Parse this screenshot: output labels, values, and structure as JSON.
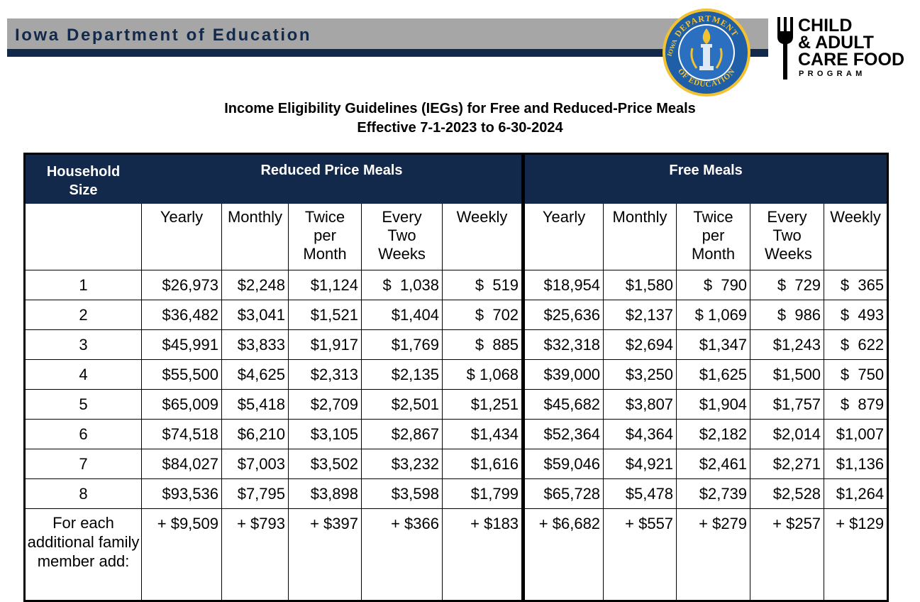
{
  "banner": {
    "title": "Iowa Department of Education"
  },
  "seal": {
    "top_text": "DEPARTMENT",
    "left_text": "IOWA",
    "bottom_text": "OF EDUCATION"
  },
  "cacfp": {
    "line1": "CHILD",
    "line2": "& ADULT",
    "line3": "CARE FOOD",
    "line4": "PROGRAM"
  },
  "heading": {
    "title": "Income Eligibility Guidelines (IEGs) for Free and Reduced-Price Meals",
    "subtitle": "Effective 7-1-2023 to 6-30-2024"
  },
  "colors": {
    "navy": "#13294b",
    "gray_banner": "#a6a6a6",
    "gold": "#f2c230",
    "seal_blue": "#1f5fa8"
  },
  "table": {
    "header": {
      "size": "Household Size",
      "reduced": "Reduced Price Meals",
      "free": "Free Meals"
    },
    "columns": [
      "Yearly",
      "Monthly",
      "Twice per Month",
      "Every Two Weeks",
      "Weekly",
      "Yearly",
      "Monthly",
      "Twice per Month",
      "Every Two Weeks",
      "Weekly"
    ],
    "rows": [
      {
        "size": "1",
        "values": [
          "$26,973",
          "$2,248",
          "$1,124",
          "$  1,038",
          "$  519",
          "$18,954",
          "$1,580",
          "$  790",
          "$  729",
          "$  365"
        ]
      },
      {
        "size": "2",
        "values": [
          "$36,482",
          "$3,041",
          "$1,521",
          "$1,404",
          "$  702",
          "$25,636",
          "$2,137",
          "$ 1,069",
          "$  986",
          "$  493"
        ]
      },
      {
        "size": "3",
        "values": [
          "$45,991",
          "$3,833",
          "$1,917",
          "$1,769",
          "$  885",
          "$32,318",
          "$2,694",
          "$1,347",
          "$1,243",
          "$  622"
        ]
      },
      {
        "size": "4",
        "values": [
          "$55,500",
          "$4,625",
          "$2,313",
          "$2,135",
          "$ 1,068",
          "$39,000",
          "$3,250",
          "$1,625",
          "$1,500",
          "$  750"
        ]
      },
      {
        "size": "5",
        "values": [
          "$65,009",
          "$5,418",
          "$2,709",
          "$2,501",
          "$1,251",
          "$45,682",
          "$3,807",
          "$1,904",
          "$1,757",
          "$  879"
        ]
      },
      {
        "size": "6",
        "values": [
          "$74,518",
          "$6,210",
          "$3,105",
          "$2,867",
          "$1,434",
          "$52,364",
          "$4,364",
          "$2,182",
          "$2,014",
          "$1,007"
        ]
      },
      {
        "size": "7",
        "values": [
          "$84,027",
          "$7,003",
          "$3,502",
          "$3,232",
          "$1,616",
          "$59,046",
          "$4,921",
          "$2,461",
          "$2,271",
          "$1,136"
        ]
      },
      {
        "size": "8",
        "values": [
          "$93,536",
          "$7,795",
          "$3,898",
          "$3,598",
          "$1,799",
          "$65,728",
          "$5,478",
          "$2,739",
          "$2,528",
          "$1,264"
        ]
      }
    ],
    "additional": {
      "label": "For each additional family member add:",
      "values": [
        "+ $9,509",
        "+ $793",
        "+ $397",
        "+ $366",
        "+ $183",
        "+ $6,682",
        "+ $557",
        "+ $279",
        "+ $257",
        "+ $129"
      ]
    }
  }
}
